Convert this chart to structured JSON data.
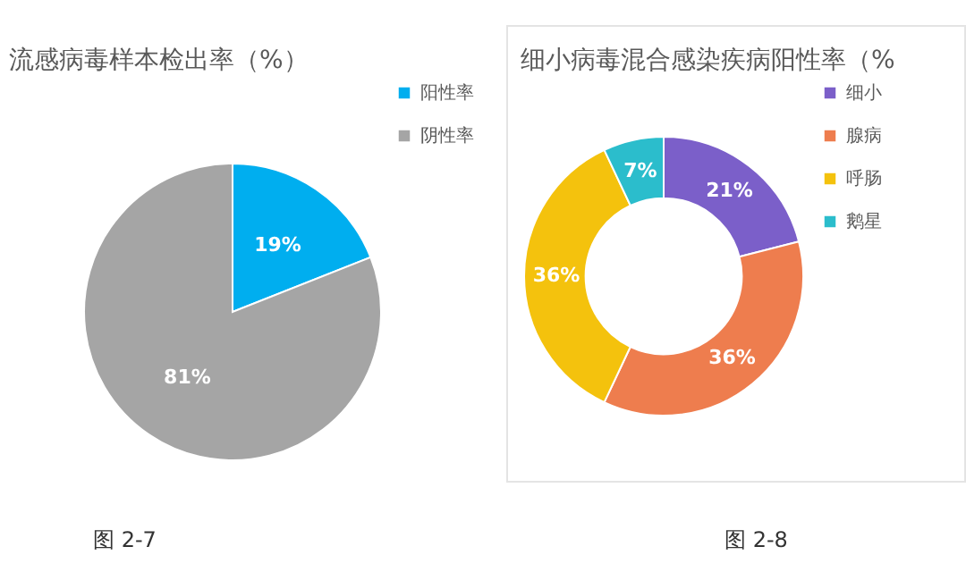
{
  "chart_data": [
    {
      "type": "pie",
      "title": "流感病毒样本检出率（%）",
      "categories": [
        "阳性率",
        "阴性率"
      ],
      "values": [
        19,
        81
      ],
      "colors": [
        "#00aeef",
        "#a5a5a5"
      ],
      "value_labels": [
        "19%",
        "81%"
      ],
      "legend": "top right",
      "annotations": [
        "图 2-7"
      ]
    },
    {
      "type": "donut",
      "title": "细小病毒混合感染疾病阳性率（%",
      "categories": [
        "细小",
        "腺病",
        "呼肠",
        "鹅星"
      ],
      "values": [
        21,
        36,
        36,
        7
      ],
      "colors": [
        "#7b5fc9",
        "#ee7d4e",
        "#f4c20d",
        "#2bbdcc"
      ],
      "value_labels": [
        "21%",
        "36%",
        "36%",
        "7%"
      ],
      "legend": "right",
      "annotations": [
        "图 2-8"
      ]
    }
  ]
}
